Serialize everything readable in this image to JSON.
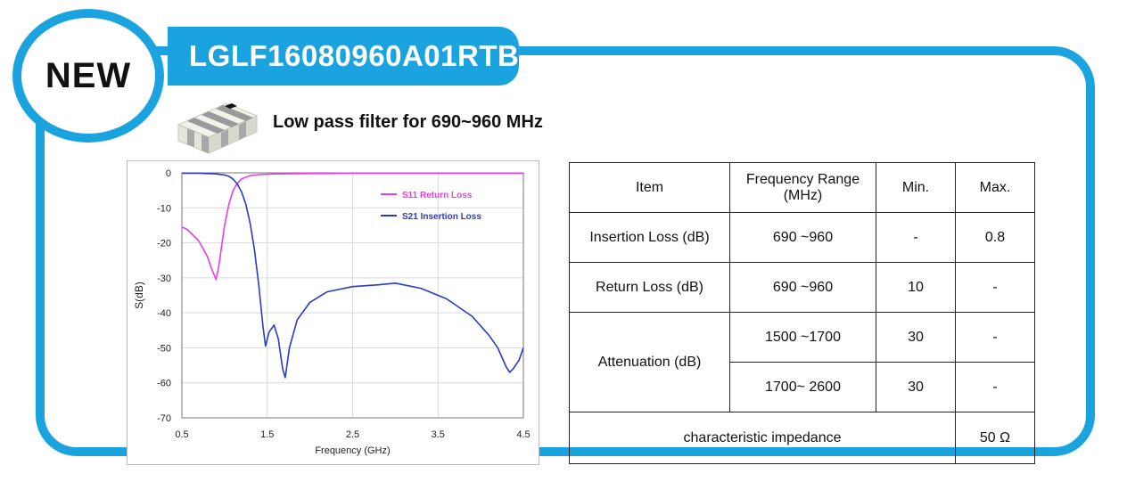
{
  "badge": "NEW",
  "part_number": "LGLF16080960A01RTB",
  "subtitle": "Low pass filter for  690~960 MHz",
  "colors": {
    "accent": "#1ba3e0",
    "s11": "#e83de8",
    "s21": "#2a3ac8"
  },
  "chart_data": {
    "type": "line",
    "xlabel": "Frequency (GHz)",
    "ylabel": "S(dB)",
    "xlim": [
      0.5,
      4.5
    ],
    "ylim": [
      -70,
      0
    ],
    "x_ticks": [
      "0.5",
      "1.5",
      "2.5",
      "3.5",
      "4.5"
    ],
    "y_ticks": [
      "0",
      "-10",
      "-20",
      "-30",
      "-40",
      "-50",
      "-60",
      "-70"
    ],
    "grid": true,
    "legend_position": "top-right",
    "series": [
      {
        "name": "S11 Return Loss",
        "color": "#e83de8",
        "x": [
          0.5,
          0.55,
          0.6,
          0.7,
          0.8,
          0.85,
          0.9,
          0.93,
          0.96,
          1.0,
          1.05,
          1.1,
          1.15,
          1.2,
          1.3,
          1.4,
          1.6,
          2.0,
          2.5,
          3.0,
          3.5,
          4.0,
          4.5
        ],
        "y": [
          -15.5,
          -16.0,
          -17.0,
          -19.5,
          -24.0,
          -27.5,
          -30.5,
          -27.0,
          -22.0,
          -15.0,
          -9.0,
          -5.0,
          -3.0,
          -1.7,
          -0.8,
          -0.5,
          -0.3,
          -0.2,
          -0.1,
          -0.1,
          -0.1,
          -0.1,
          -0.1
        ]
      },
      {
        "name": "S21 Insertion Loss",
        "color": "#2a3ac8",
        "x": [
          0.5,
          0.6,
          0.7,
          0.8,
          0.9,
          1.0,
          1.05,
          1.1,
          1.15,
          1.2,
          1.25,
          1.3,
          1.35,
          1.4,
          1.45,
          1.48,
          1.52,
          1.58,
          1.63,
          1.68,
          1.71,
          1.76,
          1.85,
          2.0,
          2.2,
          2.5,
          2.8,
          3.0,
          3.3,
          3.6,
          3.9,
          4.1,
          4.2,
          4.3,
          4.34,
          4.38,
          4.45,
          4.5
        ],
        "y": [
          -0.1,
          -0.1,
          -0.1,
          -0.2,
          -0.3,
          -0.6,
          -1.0,
          -1.8,
          -3.2,
          -5.5,
          -9.0,
          -14.5,
          -22.0,
          -32.0,
          -44.0,
          -49.5,
          -45.5,
          -43.5,
          -47.5,
          -56.0,
          -58.5,
          -50.0,
          -42.0,
          -37.0,
          -34.0,
          -32.5,
          -32.0,
          -31.5,
          -33.0,
          -36.0,
          -41.0,
          -46.5,
          -50.0,
          -55.5,
          -57.0,
          -56.0,
          -53.5,
          -50.0
        ]
      }
    ]
  },
  "table": {
    "header": {
      "item": "Item",
      "range_line1": "Frequency Range",
      "range_line2": "(MHz)",
      "min": "Min.",
      "max": "Max."
    },
    "rows": [
      {
        "item": "Insertion Loss (dB)",
        "range": "690 ~960",
        "min": "-",
        "max": "0.8"
      },
      {
        "item": "Return Loss (dB)",
        "range": "690 ~960",
        "min": "10",
        "max": "-"
      }
    ],
    "attenuation": {
      "item": "Attenuation (dB)",
      "sub": [
        {
          "range": "1500 ~1700",
          "min": "30",
          "max": "-"
        },
        {
          "range": "1700~ 2600",
          "min": "30",
          "max": "-"
        }
      ]
    },
    "impedance": {
      "label": "characteristic impedance",
      "value": "50 Ω"
    }
  }
}
